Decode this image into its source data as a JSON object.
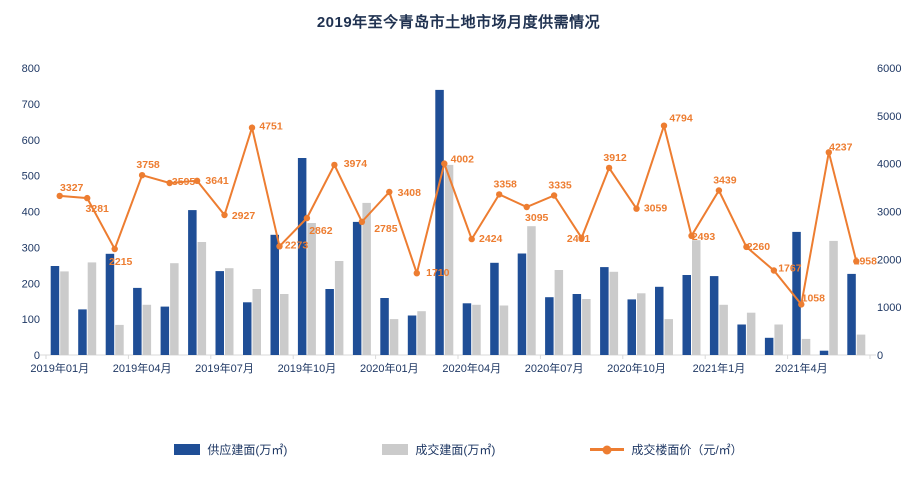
{
  "colors": {
    "supply_blue": "#1F4E96",
    "deal_gray": "#CBCBCB",
    "price_orange": "#ED7D31",
    "axis_text": "#1F3864",
    "axis_line": "#D9D9D9",
    "title_text": "#1F3150",
    "background": "#FFFFFF"
  },
  "legend": {
    "items": [
      {
        "label": "供应建面(万㎡)",
        "type": "bar",
        "color_key": "supply_blue"
      },
      {
        "label": "成交建面(万㎡)",
        "type": "bar",
        "color_key": "deal_gray"
      },
      {
        "label": "成交楼面价（元/㎡）",
        "type": "line",
        "color_key": "price_orange"
      }
    ]
  },
  "chart_data": {
    "type": "combo (grouped bar + line, dual axis)",
    "title": "2019年至今青岛市土地市场月度供需情况",
    "grid": false,
    "legend_position": "bottom",
    "categories": [
      "2019年01月",
      "2019年02月",
      "2019年03月",
      "2019年04月",
      "2019年05月",
      "2019年06月",
      "2019年07月",
      "2019年08月",
      "2019年09月",
      "2019年10月",
      "2019年11月",
      "2019年12月",
      "2020年01月",
      "2020年02月",
      "2020年03月",
      "2020年04月",
      "2020年05月",
      "2020年06月",
      "2020年07月",
      "2020年08月",
      "2020年09月",
      "2020年10月",
      "2020年11月",
      "2020年12月",
      "2021年1月",
      "2021年2月",
      "2021年3月",
      "2021年4月",
      "2021年5月",
      "2021年6月"
    ],
    "x_tick_labels": [
      "2019年01月",
      "2019年04月",
      "2019年07月",
      "2019年10月",
      "2020年01月",
      "2020年04月",
      "2020年07月",
      "2020年10月",
      "2021年1月",
      "2021年4月"
    ],
    "x_tick_every": 3,
    "axis_left": {
      "min": 0,
      "max": 800,
      "step": 100,
      "ticks": [
        0,
        100,
        200,
        300,
        400,
        500,
        600,
        700,
        800
      ]
    },
    "axis_right": {
      "min": 0,
      "max": 6000,
      "step": 1000,
      "ticks": [
        0,
        1000,
        2000,
        3000,
        4000,
        5000,
        6000
      ]
    },
    "series": [
      {
        "name": "供应建面(万㎡)",
        "type": "bar",
        "axis": "left",
        "values": [
          248,
          127,
          282,
          187,
          135,
          404,
          234,
          147,
          335,
          549,
          184,
          371,
          159,
          110,
          739,
          144,
          257,
          283,
          161,
          170,
          245,
          155,
          190,
          223,
          220,
          85,
          48,
          343,
          12,
          226
        ]
      },
      {
        "name": "成交建面(万㎡)",
        "type": "bar",
        "axis": "left",
        "values": [
          233,
          258,
          84,
          140,
          256,
          315,
          242,
          184,
          170,
          368,
          262,
          424,
          100,
          122,
          530,
          140,
          138,
          359,
          237,
          156,
          232,
          172,
          100,
          320,
          140,
          118,
          85,
          45,
          318,
          57
        ]
      },
      {
        "name": "成交楼面价（元/㎡）",
        "type": "line",
        "axis": "right",
        "data_labels": true,
        "values": [
          3327,
          3281,
          2215,
          3758,
          3595,
          3641,
          2927,
          4751,
          2273,
          2862,
          3974,
          2785,
          3408,
          1710,
          4002,
          2424,
          3358,
          3095,
          3335,
          2451,
          3912,
          3059,
          4794,
          2493,
          3439,
          2260,
          1767,
          1058,
          4237,
          1958
        ]
      }
    ]
  }
}
